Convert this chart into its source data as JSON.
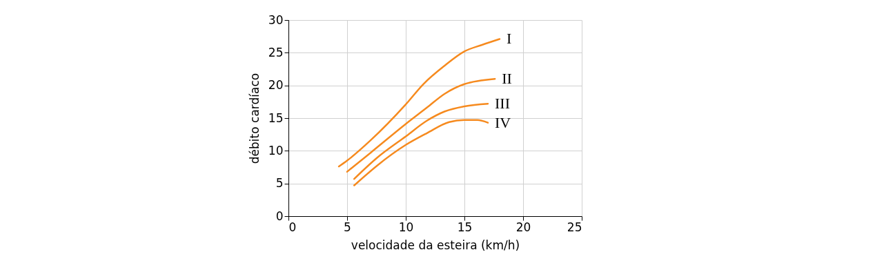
{
  "chart_data": {
    "type": "line",
    "xlabel": "velocidade da esteira (km/h)",
    "ylabel": "débito cardíaco",
    "xlim": [
      0,
      25
    ],
    "xticks": [
      0,
      5,
      10,
      15,
      20,
      25
    ],
    "ylim": [
      0,
      30
    ],
    "yticks": [
      0,
      5,
      10,
      15,
      20,
      25,
      30
    ],
    "grid": true,
    "legend": false,
    "marker": "none",
    "line_style": "solid",
    "series": [
      {
        "name": "I",
        "color": "#f68a1e",
        "x": [
          4.3,
          5,
          7,
          10,
          11.5,
          13.3,
          15,
          16.5,
          18
        ],
        "values": [
          7.6,
          8.5,
          11.6,
          17.1,
          20.2,
          23,
          25.2,
          26.2,
          27.1
        ]
      },
      {
        "name": "II",
        "color": "#f68a1e",
        "x": [
          5,
          7,
          10,
          11.8,
          13.3,
          15,
          17.6
        ],
        "values": [
          6.8,
          9.7,
          14.1,
          16.6,
          18.7,
          20.2,
          21
        ]
      },
      {
        "name": "III",
        "color": "#f68a1e",
        "x": [
          5.6,
          7.6,
          10,
          11.8,
          13.3,
          15,
          17
        ],
        "values": [
          5.7,
          9,
          12.2,
          14.6,
          16,
          16.8,
          17.2
        ]
      },
      {
        "name": "IV",
        "color": "#f68a1e",
        "x": [
          5.6,
          7.6,
          10,
          11.8,
          13.7,
          15,
          16.1,
          17
        ],
        "values": [
          4.7,
          7.8,
          10.9,
          12.7,
          14.4,
          14.7,
          14.7,
          14.3
        ]
      }
    ]
  }
}
